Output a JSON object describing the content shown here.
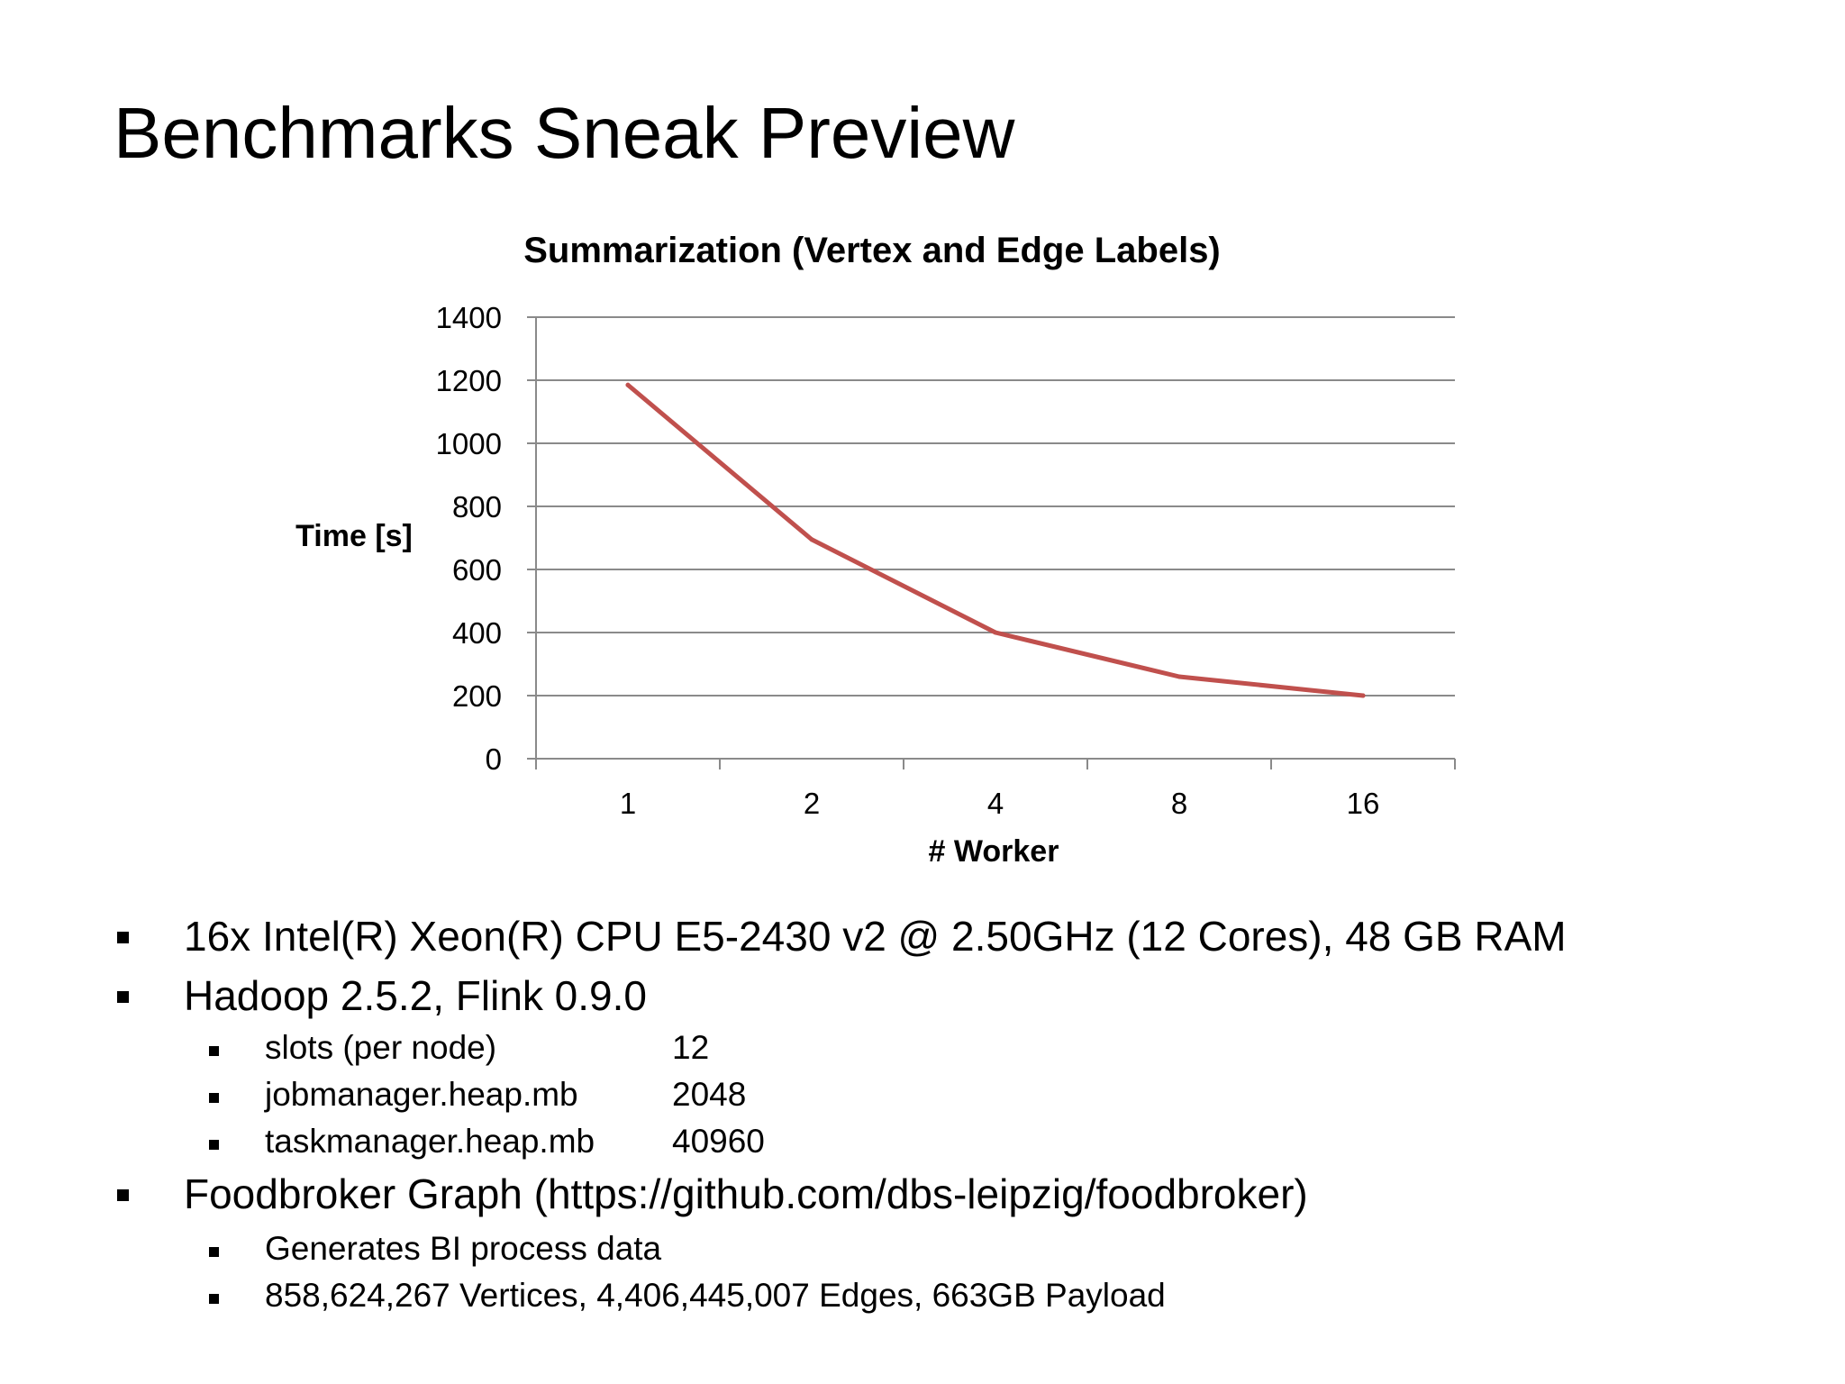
{
  "slide": {
    "title": "Benchmarks Sneak Preview"
  },
  "chart_data": {
    "type": "line",
    "title": "Summarization (Vertex and Edge Labels)",
    "xlabel": "# Worker",
    "ylabel": "Time [s]",
    "categories": [
      "1",
      "2",
      "4",
      "8",
      "16"
    ],
    "series": [
      {
        "values": [
          1185,
          695,
          400,
          260,
          200
        ],
        "color": "#c0504d"
      }
    ],
    "ylim": [
      0,
      1400
    ],
    "yticks": [
      "0",
      "200",
      "400",
      "600",
      "800",
      "1000",
      "1200",
      "1400"
    ],
    "grid": true,
    "legend": "none"
  },
  "bullets": {
    "hardware": "16x Intel(R) Xeon(R) CPU E5-2430 v2 @ 2.50GHz (12 Cores), 48 GB RAM",
    "software": "Hadoop 2.5.2, Flink 0.9.0",
    "config": [
      {
        "key": "slots (per node)",
        "value": "12"
      },
      {
        "key": "jobmanager.heap.mb",
        "value": "2048"
      },
      {
        "key": "taskmanager.heap.mb",
        "value": "40960"
      }
    ],
    "dataset": "Foodbroker Graph (https://github.com/dbs-leipzig/foodbroker)",
    "dataset_details": [
      "Generates BI process data",
      "858,624,267   Vertices, 4,406,445,007 Edges, 663GB Payload"
    ]
  }
}
